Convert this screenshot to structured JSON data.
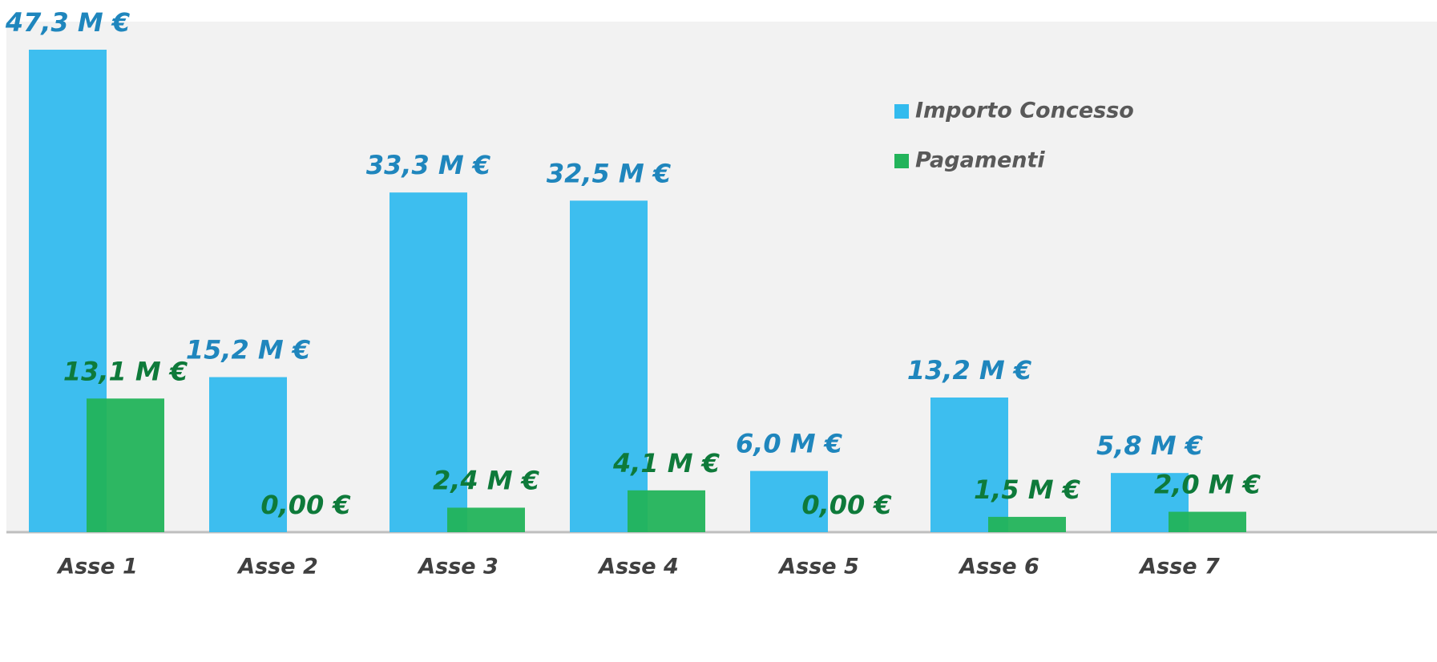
{
  "chart_data": {
    "type": "bar",
    "categories": [
      "Asse 1",
      "Asse 2",
      "Asse 3",
      "Asse 4",
      "Asse 5",
      "Asse 6",
      "Asse 7"
    ],
    "series": [
      {
        "name": "Importo Concesso",
        "color": "#33bbee",
        "label_color": "#1f86bd",
        "values": [
          47.3,
          15.2,
          33.3,
          32.5,
          6.0,
          13.2,
          5.8
        ],
        "value_labels": [
          "47,3 M €",
          "15,2 M €",
          "33,3 M €",
          "32,5 M €",
          "6,0 M €",
          "13,2 M €",
          "5,8 M €"
        ]
      },
      {
        "name": "Pagamenti",
        "color": "#22b35a",
        "label_color": "#0e7a3a",
        "values": [
          13.1,
          0,
          2.4,
          4.1,
          0,
          1.5,
          2.0
        ],
        "value_labels": [
          "13,1 M €",
          "0,00 €",
          "2,4 M €",
          "4,1 M €",
          "0,00 €",
          "1,5 M €",
          "2,0 M €"
        ]
      }
    ]
  }
}
